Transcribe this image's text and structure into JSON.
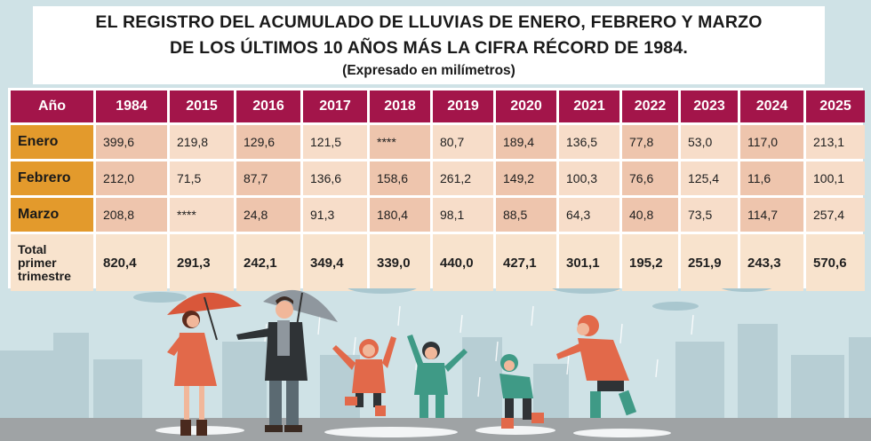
{
  "title": {
    "line1": "EL REGISTRO DEL ACUMULADO DE LLUVIAS DE ENERO, FEBRERO Y MARZO",
    "line2": "DE LOS ÚLTIMOS 10 AÑOS MÁS LA CIFRA RÉCORD DE 1984.",
    "subtitle": "(Expresado en milímetros)"
  },
  "table": {
    "header": {
      "corner": "Año",
      "years": [
        "1984",
        "2015",
        "2016",
        "2017",
        "2018",
        "2019",
        "2020",
        "2021",
        "2022",
        "2023",
        "2024",
        "2025"
      ]
    },
    "rows": [
      {
        "label": "Enero",
        "values": [
          "399,6",
          "219,8",
          "129,6",
          "121,5",
          "****",
          "80,7",
          "189,4",
          "136,5",
          "77,8",
          "53,0",
          "117,0",
          "213,1"
        ]
      },
      {
        "label": "Febrero",
        "values": [
          "212,0",
          "71,5",
          "87,7",
          "136,6",
          "158,6",
          "261,2",
          "149,2",
          "100,3",
          "76,6",
          "125,4",
          "11,6",
          "100,1"
        ]
      },
      {
        "label": "Marzo",
        "values": [
          "208,8",
          "****",
          "24,8",
          "91,3",
          "180,4",
          "98,1",
          "88,5",
          "64,3",
          "40,8",
          "73,5",
          "114,7",
          "257,4"
        ]
      }
    ],
    "total": {
      "label_line1": "Total",
      "label_line2": "primer",
      "label_line3": "trimestre",
      "values": [
        "820,4",
        "291,3",
        "242,1",
        "349,4",
        "339,0",
        "440,0",
        "427,1",
        "301,1",
        "195,2",
        "251,9",
        "243,3",
        "570,6"
      ]
    }
  },
  "colors": {
    "header": "#a3154a",
    "row_label": "#e39a2c",
    "cell_dark": "#eec5ad",
    "cell_light": "#f7ddc9",
    "background": "#cfe2e6",
    "umbrella_red": "#d9573a",
    "umbrella_grey": "#8f979e",
    "raincoat_orange": "#e2694a",
    "raincoat_teal": "#3f9a86"
  }
}
